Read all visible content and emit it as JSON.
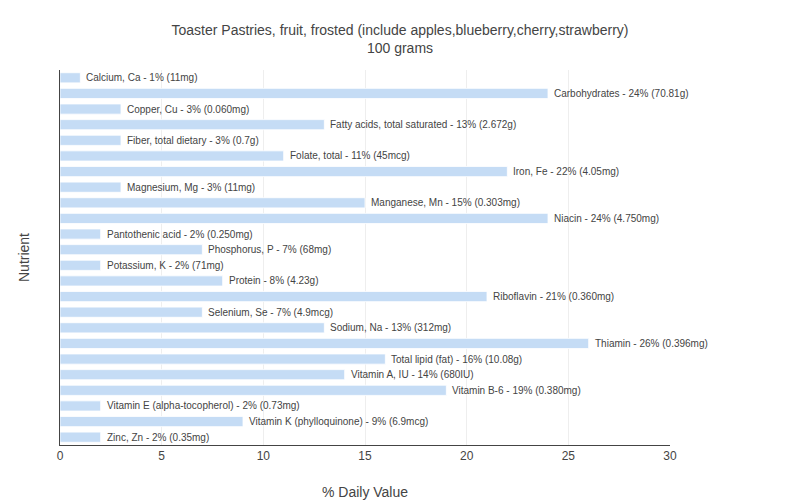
{
  "chart_data": {
    "type": "bar",
    "orientation": "horizontal",
    "title": "Toaster Pastries, fruit, frosted (include apples,blueberry,cherry,strawberry)\n100 grams",
    "xlabel": "% Daily Value",
    "ylabel": "Nutrient",
    "categories": [
      "Calcium, Ca - 1% (11mg)",
      "Carbohydrates - 24% (70.81g)",
      "Copper, Cu - 3% (0.060mg)",
      "Fatty acids, total saturated - 13% (2.672g)",
      "Fiber, total dietary - 3% (0.7g)",
      "Folate, total - 11% (45mcg)",
      "Iron, Fe - 22% (4.05mg)",
      "Magnesium, Mg - 3% (11mg)",
      "Manganese, Mn - 15% (0.303mg)",
      "Niacin - 24% (4.750mg)",
      "Pantothenic acid - 2% (0.250mg)",
      "Phosphorus, P - 7% (68mg)",
      "Potassium, K - 2% (71mg)",
      "Protein - 8% (4.23g)",
      "Riboflavin - 21% (0.360mg)",
      "Selenium, Se - 7% (4.9mcg)",
      "Sodium, Na - 13% (312mg)",
      "Thiamin - 26% (0.396mg)",
      "Total lipid (fat) - 16% (10.08g)",
      "Vitamin A, IU - 14% (680IU)",
      "Vitamin B-6 - 19% (0.380mg)",
      "Vitamin E (alpha-tocopherol) - 2% (0.73mg)",
      "Vitamin K (phylloquinone) - 9% (6.9mcg)",
      "Zinc, Zn - 2% (0.35mg)"
    ],
    "values": [
      1,
      24,
      3,
      13,
      3,
      11,
      22,
      3,
      15,
      24,
      2,
      7,
      2,
      8,
      21,
      7,
      13,
      26,
      16,
      14,
      19,
      2,
      9,
      2
    ],
    "color": "#c5dcf5",
    "xlim": [
      0,
      30
    ],
    "xticks": [
      0,
      5,
      10,
      15,
      20,
      25,
      30
    ],
    "grid": true,
    "tick_labels": "x"
  }
}
